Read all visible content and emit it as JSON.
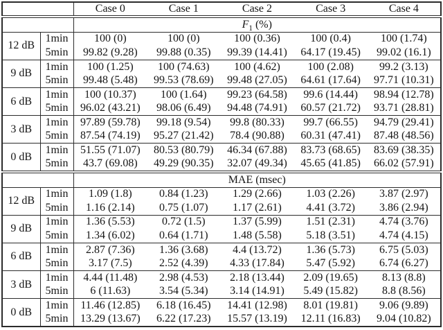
{
  "table": {
    "colors": {
      "border": "#2b2b2b",
      "text": "#151515",
      "background": "#ffffff"
    },
    "case_headers": [
      "Case 0",
      "Case 1",
      "Case 2",
      "Case 3",
      "Case 4"
    ],
    "row_group_labels": [
      "12 dB",
      "9 dB",
      "6 dB",
      "3 dB",
      "0 dB"
    ],
    "duration_labels": [
      "1min",
      "5min"
    ],
    "sections": [
      {
        "title": {
          "symbol": "F",
          "subscript": "1",
          "unit": "(%)",
          "italic": true
        },
        "groups": [
          {
            "db": "12 dB",
            "rows": [
              {
                "label": "1min",
                "values": [
                  "100 (0)",
                  "100 (0)",
                  "100 (0.36)",
                  "100 (0.4)",
                  "100 (1.74)"
                ]
              },
              {
                "label": "5min",
                "values": [
                  "99.82 (9.28)",
                  "99.88 (0.35)",
                  "99.39 (14.41)",
                  "64.17 (19.45)",
                  "99.02 (16.1)"
                ]
              }
            ]
          },
          {
            "db": "9 dB",
            "rows": [
              {
                "label": "1min",
                "values": [
                  "100 (1.25)",
                  "100 (74.63)",
                  "100 (4.62)",
                  "100 (2.08)",
                  "99.2 (3.13)"
                ]
              },
              {
                "label": "5min",
                "values": [
                  "99.48 (5.48)",
                  "99.53 (78.69)",
                  "99.48 (27.05)",
                  "64.61 (17.64)",
                  "97.71 (10.31)"
                ]
              }
            ]
          },
          {
            "db": "6 dB",
            "rows": [
              {
                "label": "1min",
                "values": [
                  "100 (10.37)",
                  "100 (1.64)",
                  "99.23 (64.58)",
                  "99.6 (14.44)",
                  "98.94 (12.78)"
                ]
              },
              {
                "label": "5min",
                "values": [
                  "96.02 (43.21)",
                  "98.06 (6.49)",
                  "94.48 (74.91)",
                  "60.57 (21.72)",
                  "93.71 (28.81)"
                ]
              }
            ]
          },
          {
            "db": "3 dB",
            "rows": [
              {
                "label": "1min",
                "values": [
                  "97.89 (59.78)",
                  "99.18 (9.54)",
                  "99.8 (80.33)",
                  "99.7 (66.55)",
                  "94.79 (29.41)"
                ]
              },
              {
                "label": "5min",
                "values": [
                  "87.54 (74.19)",
                  "95.27 (21.42)",
                  "78.4 (90.88)",
                  "60.31 (47.41)",
                  "87.48 (48.56)"
                ]
              }
            ]
          },
          {
            "db": "0 dB",
            "rows": [
              {
                "label": "1min",
                "values": [
                  "51.55 (71.07)",
                  "80.53 (80.79)",
                  "46.34 (67.88)",
                  "83.73 (68.65)",
                  "83.69 (38.35)"
                ]
              },
              {
                "label": "5min",
                "values": [
                  "43.7 (69.08)",
                  "49.29 (90.35)",
                  "32.07 (49.34)",
                  "45.65 (41.85)",
                  "66.02 (57.91)"
                ]
              }
            ]
          }
        ]
      },
      {
        "title": {
          "symbol": "MAE",
          "subscript": "",
          "unit": "(msec)",
          "italic": false
        },
        "groups": [
          {
            "db": "12 dB",
            "rows": [
              {
                "label": "1min",
                "values": [
                  "1.09 (1.8)",
                  "0.84 (1.23)",
                  "1.29 (2.66)",
                  "1.03 (2.26)",
                  "3.87 (2.97)"
                ]
              },
              {
                "label": "5min",
                "values": [
                  "1.16 (2.14)",
                  "0.75 (1.07)",
                  "1.17 (2.61)",
                  "4.41 (3.72)",
                  "3.86 (2.94)"
                ]
              }
            ]
          },
          {
            "db": "9 dB",
            "rows": [
              {
                "label": "1min",
                "values": [
                  "1.36 (5.53)",
                  "0.72 (1.5)",
                  "1.37 (5.99)",
                  "1.51 (2.31)",
                  "4.74 (3.76)"
                ]
              },
              {
                "label": "5min",
                "values": [
                  "1.34 (6.02)",
                  "0.64 (1.71)",
                  "1.48 (5.58)",
                  "5.18 (3.51)",
                  "4.74 (4.15)"
                ]
              }
            ]
          },
          {
            "db": "6 dB",
            "rows": [
              {
                "label": "1min",
                "values": [
                  "2.87 (7.36)",
                  "1.36 (3.68)",
                  "4.4 (13.72)",
                  "1.36 (5.73)",
                  "6.75 (5.03)"
                ]
              },
              {
                "label": "5min",
                "values": [
                  "3.17 (7.5)",
                  "2.52 (4.39)",
                  "4.33 (17.84)",
                  "5.47 (5.92)",
                  "6.74 (6.27)"
                ]
              }
            ]
          },
          {
            "db": "3 dB",
            "rows": [
              {
                "label": "1min",
                "values": [
                  "4.44 (11.48)",
                  "2.98 (4.53)",
                  "2.18 (13.44)",
                  "2.09 (19.65)",
                  "8.13 (8.8)"
                ]
              },
              {
                "label": "5min",
                "values": [
                  "6 (11.63)",
                  "3.54 (5.34)",
                  "3.14 (14.91)",
                  "5.49 (15.82)",
                  "8.8 (8.56)"
                ]
              }
            ]
          },
          {
            "db": "0 dB",
            "rows": [
              {
                "label": "1min",
                "values": [
                  "11.46 (12.85)",
                  "6.18 (16.45)",
                  "14.41 (12.98)",
                  "8.01 (19.81)",
                  "9.06 (9.89)"
                ]
              },
              {
                "label": "5min",
                "values": [
                  "13.29 (13.67)",
                  "6.22 (17.23)",
                  "15.57 (13.19)",
                  "12.11 (16.83)",
                  "9.04 (10.82)"
                ]
              }
            ]
          }
        ]
      }
    ]
  }
}
